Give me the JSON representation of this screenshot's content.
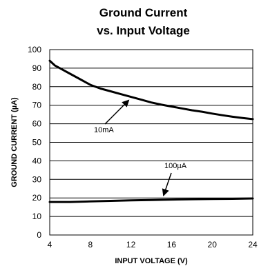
{
  "chart_data": {
    "type": "line",
    "title": "Ground Current",
    "subtitle": "vs. Input Voltage",
    "xlabel": "INPUT VOLTAGE (V)",
    "ylabel": "GROUND CURRENT (µA)",
    "xlim": [
      4,
      24
    ],
    "ylim": [
      0,
      100
    ],
    "xticks": [
      4,
      8,
      12,
      16,
      20,
      24
    ],
    "yticks": [
      0,
      10,
      20,
      30,
      40,
      50,
      60,
      70,
      80,
      90,
      100
    ],
    "grid": "horizontal",
    "series": [
      {
        "name": "10mA",
        "x": [
          4,
          4.5,
          5,
          6,
          7,
          8,
          9,
          10,
          11,
          12,
          13,
          14,
          15,
          16,
          17,
          18,
          19,
          20,
          21,
          22,
          23,
          24
        ],
        "y": [
          94,
          91.5,
          90,
          87,
          84,
          81,
          79,
          77.5,
          76,
          74.5,
          73,
          71.5,
          70.3,
          69.3,
          68.3,
          67.3,
          66.5,
          65.5,
          64.6,
          63.8,
          63.1,
          62.5
        ]
      },
      {
        "name": "100µA",
        "x": [
          4,
          6,
          8,
          10,
          12,
          14,
          16,
          18,
          20,
          22,
          24
        ],
        "y": [
          17.8,
          17.8,
          18.1,
          18.4,
          18.7,
          18.9,
          19.1,
          19.3,
          19.4,
          19.5,
          19.7
        ]
      }
    ],
    "annotations": [
      {
        "text": "10mA",
        "arrow_to": [
          12,
          75
        ]
      },
      {
        "text": "100µA",
        "arrow_to": [
          15,
          19
        ]
      }
    ]
  }
}
